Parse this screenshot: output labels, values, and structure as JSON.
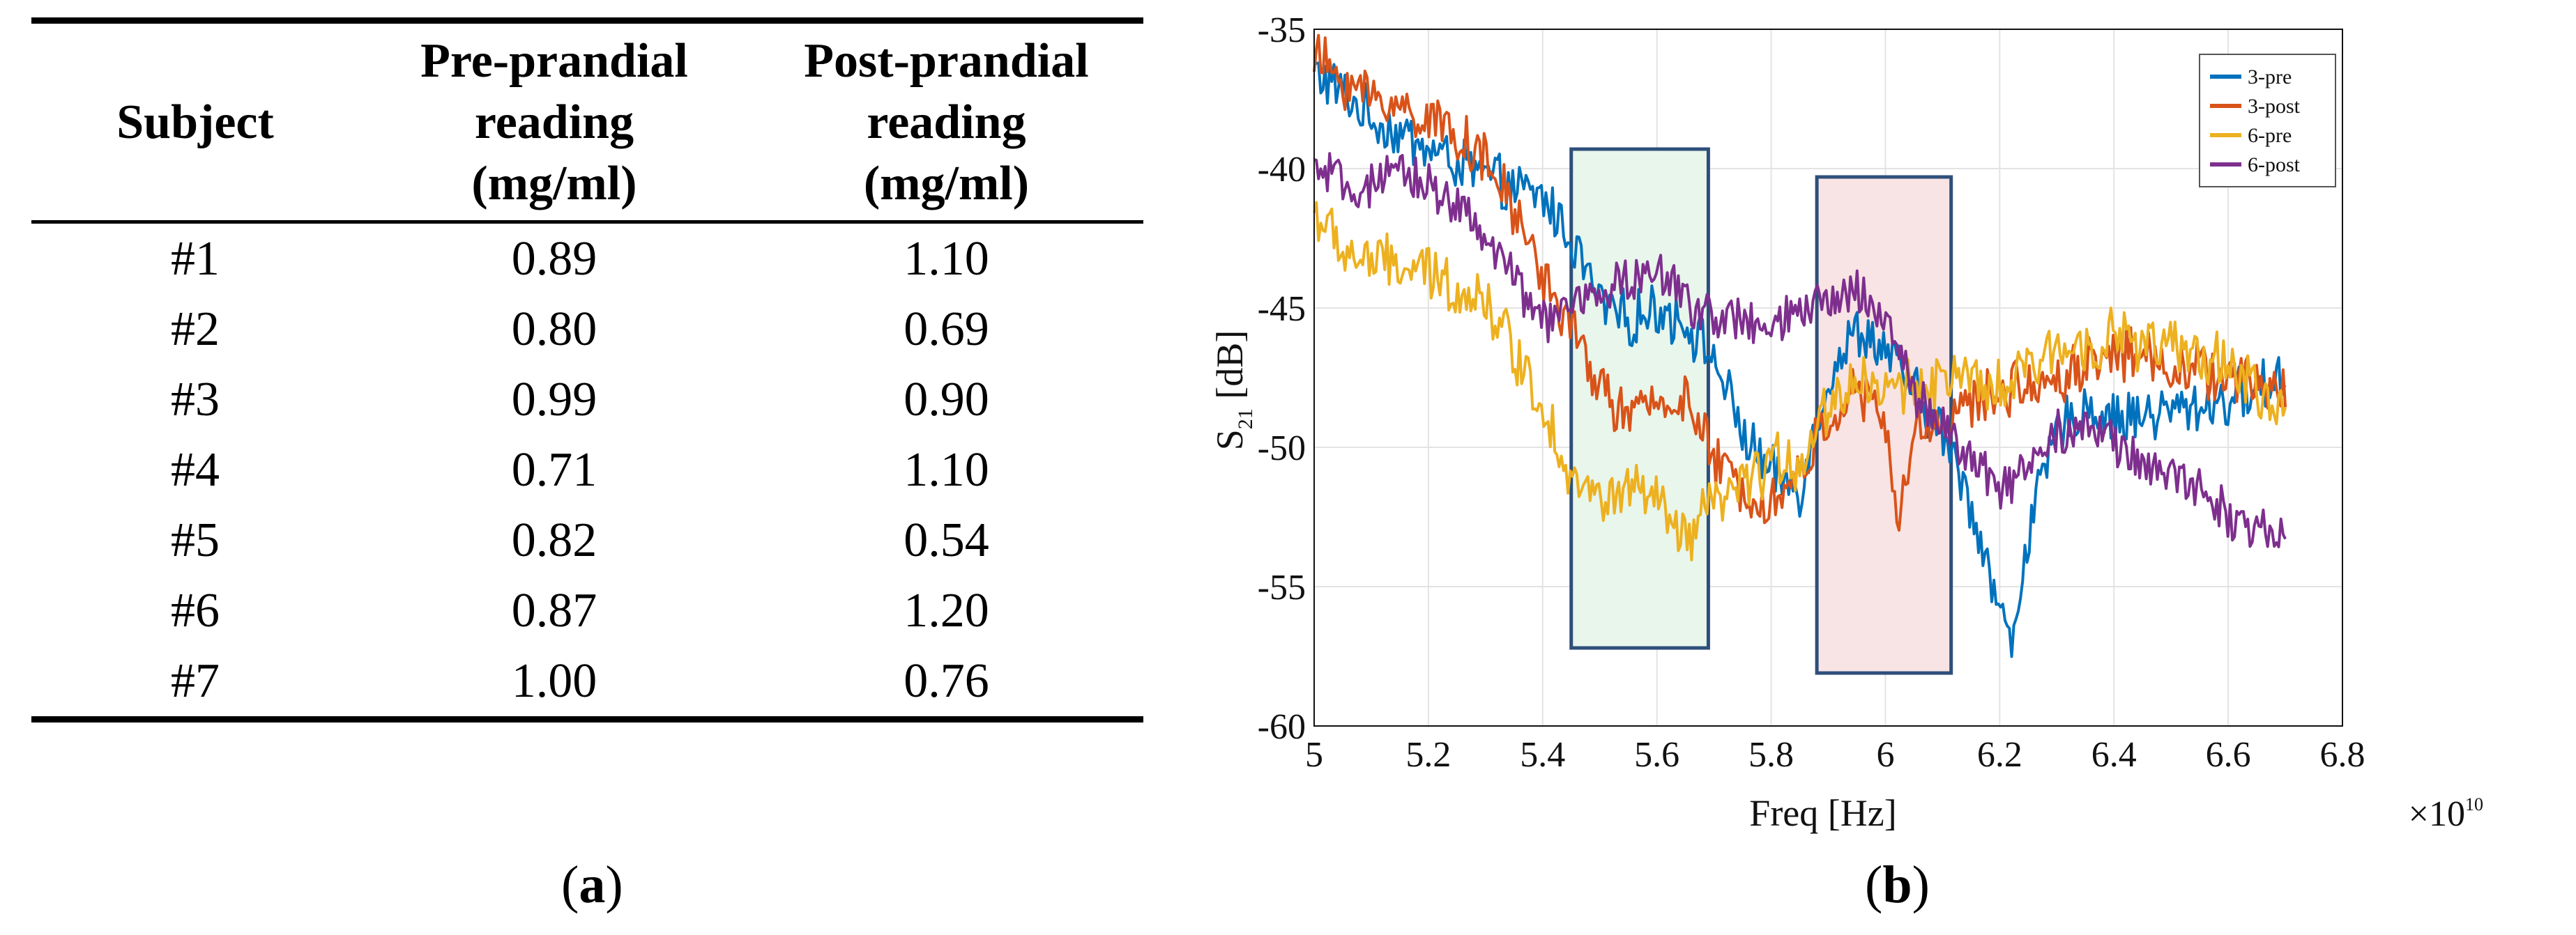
{
  "table": {
    "headers": [
      {
        "lines": [
          "Subject"
        ]
      },
      {
        "lines": [
          "Pre-prandial",
          "reading",
          "(mg/ml)"
        ]
      },
      {
        "lines": [
          "Post-prandial",
          "reading",
          "(mg/ml)"
        ]
      }
    ],
    "rows": [
      [
        "#1",
        "0.89",
        "1.10"
      ],
      [
        "#2",
        "0.80",
        "0.69"
      ],
      [
        "#3",
        "0.99",
        "0.90"
      ],
      [
        "#4",
        "0.71",
        "1.10"
      ],
      [
        "#5",
        "0.82",
        "0.54"
      ],
      [
        "#6",
        "0.87",
        "1.20"
      ],
      [
        "#7",
        "1.00",
        "0.76"
      ]
    ]
  },
  "captions": {
    "a": {
      "open": "(",
      "letter": "a",
      "close": ")"
    },
    "b": {
      "open": "(",
      "letter": "b",
      "close": ")"
    }
  },
  "chart_data": {
    "type": "line",
    "xlabel": "Freq [Hz]",
    "ylabel_main": "S",
    "ylabel_sub": "21",
    "ylabel_unit": " [dB]",
    "xlim": [
      5.0,
      6.8
    ],
    "ylim": [
      -60,
      -35
    ],
    "x_scale_note": "×10",
    "x_scale_exp": "10",
    "x_ticks": [
      5.0,
      5.2,
      5.4,
      5.6,
      5.8,
      6.0,
      6.2,
      6.4,
      6.6,
      6.8
    ],
    "x_tick_labels": [
      "5",
      "5.2",
      "5.4",
      "5.6",
      "5.8",
      "6",
      "6.2",
      "6.4",
      "6.6",
      "6.8"
    ],
    "y_ticks": [
      -35,
      -40,
      -45,
      -50,
      -55,
      -60
    ],
    "y_tick_labels": [
      "-35",
      "-40",
      "-45",
      "-50",
      "-55",
      "-60"
    ],
    "grid": true,
    "legend_position": "top-right",
    "x_end": 6.7,
    "regions": [
      {
        "name": "green",
        "x": [
          5.45,
          5.69
        ],
        "y": [
          -57.2,
          -39.3
        ],
        "fill": "#e8f6ec",
        "stroke": "#2e4f7a"
      },
      {
        "name": "pink",
        "x": [
          5.88,
          6.115
        ],
        "y": [
          -58.1,
          -40.3
        ],
        "fill": "#f8e4e4",
        "stroke": "#2e4f7a"
      }
    ],
    "series": [
      {
        "name": "3-pre",
        "color": "#0072BD",
        "anchors": [
          [
            5.0,
            -36.5
          ],
          [
            5.05,
            -37.3
          ],
          [
            5.1,
            -38.2
          ],
          [
            5.2,
            -39.3
          ],
          [
            5.3,
            -40.3
          ],
          [
            5.35,
            -40.8
          ],
          [
            5.4,
            -41.0
          ],
          [
            5.45,
            -42.5
          ],
          [
            5.5,
            -44.8
          ],
          [
            5.55,
            -45.5
          ],
          [
            5.6,
            -45.0
          ],
          [
            5.65,
            -45.5
          ],
          [
            5.7,
            -46.8
          ],
          [
            5.75,
            -49.5
          ],
          [
            5.8,
            -51.0
          ],
          [
            5.85,
            -51.5
          ],
          [
            5.9,
            -47.5
          ],
          [
            5.95,
            -45.8
          ],
          [
            6.0,
            -46.5
          ],
          [
            6.05,
            -48.0
          ],
          [
            6.1,
            -49.5
          ],
          [
            6.15,
            -52.0
          ],
          [
            6.2,
            -55.8
          ],
          [
            6.22,
            -57.2
          ],
          [
            6.25,
            -53.0
          ],
          [
            6.3,
            -49.5
          ],
          [
            6.35,
            -48.5
          ],
          [
            6.4,
            -49.0
          ],
          [
            6.5,
            -48.7
          ],
          [
            6.6,
            -48.3
          ],
          [
            6.7,
            -47.5
          ]
        ],
        "noise": 0.85
      },
      {
        "name": "3-post",
        "color": "#D95319",
        "anchors": [
          [
            5.0,
            -36.0
          ],
          [
            5.05,
            -36.8
          ],
          [
            5.1,
            -37.4
          ],
          [
            5.2,
            -38.2
          ],
          [
            5.25,
            -38.7
          ],
          [
            5.3,
            -39.8
          ],
          [
            5.35,
            -41.5
          ],
          [
            5.4,
            -43.8
          ],
          [
            5.45,
            -45.8
          ],
          [
            5.5,
            -47.8
          ],
          [
            5.55,
            -49.0
          ],
          [
            5.6,
            -48.4
          ],
          [
            5.65,
            -48.2
          ],
          [
            5.7,
            -50.5
          ],
          [
            5.75,
            -51.5
          ],
          [
            5.8,
            -52.0
          ],
          [
            5.85,
            -51.0
          ],
          [
            5.9,
            -49.0
          ],
          [
            5.95,
            -48.0
          ],
          [
            6.0,
            -49.0
          ],
          [
            6.02,
            -53.0
          ],
          [
            6.05,
            -49.5
          ],
          [
            6.1,
            -49.0
          ],
          [
            6.2,
            -48.0
          ],
          [
            6.3,
            -47.5
          ],
          [
            6.4,
            -46.5
          ],
          [
            6.5,
            -47.0
          ],
          [
            6.6,
            -47.5
          ],
          [
            6.7,
            -48.0
          ]
        ],
        "noise": 0.85
      },
      {
        "name": "6-pre",
        "color": "#EDB120",
        "anchors": [
          [
            5.0,
            -41.5
          ],
          [
            5.05,
            -43.0
          ],
          [
            5.1,
            -43.3
          ],
          [
            5.2,
            -43.8
          ],
          [
            5.3,
            -44.7
          ],
          [
            5.35,
            -46.5
          ],
          [
            5.4,
            -48.5
          ],
          [
            5.45,
            -51.0
          ],
          [
            5.5,
            -52.0
          ],
          [
            5.55,
            -51.5
          ],
          [
            5.6,
            -52.0
          ],
          [
            5.65,
            -53.5
          ],
          [
            5.7,
            -52.0
          ],
          [
            5.75,
            -51.5
          ],
          [
            5.8,
            -50.5
          ],
          [
            5.85,
            -50.5
          ],
          [
            5.9,
            -48.5
          ],
          [
            5.95,
            -47.5
          ],
          [
            6.0,
            -48.0
          ],
          [
            6.1,
            -47.5
          ],
          [
            6.2,
            -48.0
          ],
          [
            6.3,
            -46.5
          ],
          [
            6.4,
            -46.0
          ],
          [
            6.5,
            -46.5
          ],
          [
            6.6,
            -47.0
          ],
          [
            6.7,
            -49.0
          ]
        ],
        "noise": 0.9
      },
      {
        "name": "6-post",
        "color": "#7E2F8E",
        "anchors": [
          [
            5.0,
            -40.0
          ],
          [
            5.05,
            -40.6
          ],
          [
            5.1,
            -40.8
          ],
          [
            5.15,
            -40.2
          ],
          [
            5.2,
            -40.5
          ],
          [
            5.25,
            -41.3
          ],
          [
            5.3,
            -42.5
          ],
          [
            5.35,
            -44.0
          ],
          [
            5.4,
            -45.5
          ],
          [
            5.45,
            -45.0
          ],
          [
            5.5,
            -44.4
          ],
          [
            5.55,
            -44.0
          ],
          [
            5.6,
            -43.8
          ],
          [
            5.65,
            -44.6
          ],
          [
            5.7,
            -45.3
          ],
          [
            5.8,
            -45.8
          ],
          [
            5.85,
            -45.2
          ],
          [
            5.9,
            -44.8
          ],
          [
            5.95,
            -44.3
          ],
          [
            6.0,
            -45.3
          ],
          [
            6.05,
            -48.0
          ],
          [
            6.1,
            -49.2
          ],
          [
            6.15,
            -50.5
          ],
          [
            6.2,
            -51.5
          ],
          [
            6.25,
            -50.5
          ],
          [
            6.3,
            -49.5
          ],
          [
            6.35,
            -49.0
          ],
          [
            6.4,
            -50.0
          ],
          [
            6.45,
            -50.5
          ],
          [
            6.5,
            -51.0
          ],
          [
            6.55,
            -51.5
          ],
          [
            6.6,
            -52.3
          ],
          [
            6.65,
            -53.2
          ],
          [
            6.7,
            -53.0
          ]
        ],
        "noise": 0.75
      }
    ]
  }
}
